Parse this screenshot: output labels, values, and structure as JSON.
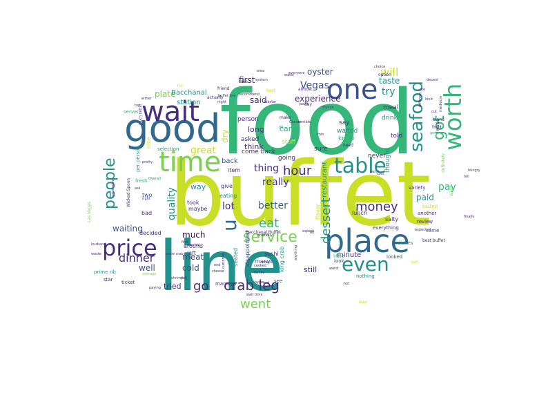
{
  "palette": {
    "background": "#ffffff",
    "yellowgreen": "#c8df26",
    "green": "#35b779",
    "lightgreen": "#7ad151",
    "teal": "#21918c",
    "blue": "#31688e",
    "slate": "#3b528b",
    "purple": "#472d7b",
    "darkpurple": "#440154",
    "yellow": "#e3e418"
  },
  "words": [
    {
      "text": "buffet",
      "color": "yellowgreen"
    },
    {
      "text": "food",
      "color": "green"
    },
    {
      "text": "line",
      "color": "teal"
    },
    {
      "text": "good",
      "color": "blue"
    },
    {
      "text": "wait",
      "color": "purple"
    },
    {
      "text": "one",
      "color": "slate"
    },
    {
      "text": "time",
      "color": "lightgreen"
    },
    {
      "text": "place",
      "color": "blue"
    },
    {
      "text": "table",
      "color": "teal"
    },
    {
      "text": "price",
      "color": "purple"
    },
    {
      "text": "even",
      "color": "teal"
    },
    {
      "text": "worth",
      "color": "green"
    },
    {
      "text": "seafood",
      "color": "teal"
    },
    {
      "text": "got",
      "color": "green"
    },
    {
      "text": "people",
      "color": "teal"
    },
    {
      "text": "service",
      "color": "lightgreen"
    },
    {
      "text": "crab leg",
      "color": "purple"
    },
    {
      "text": "u",
      "color": "blue"
    },
    {
      "text": "money",
      "color": "purple"
    },
    {
      "text": "hour",
      "color": "purple"
    },
    {
      "text": "dessert",
      "color": "teal"
    },
    {
      "text": "went",
      "color": "lightgreen"
    },
    {
      "text": "eat",
      "color": "green"
    },
    {
      "text": "dinner",
      "color": "purple"
    },
    {
      "text": "will",
      "color": "yellowgreen"
    },
    {
      "text": "great",
      "color": "yellowgreen"
    },
    {
      "text": "quality",
      "color": "teal"
    },
    {
      "text": "Vegas",
      "color": "slate"
    },
    {
      "text": "go",
      "color": "purple"
    },
    {
      "text": "really",
      "color": "purple"
    },
    {
      "text": "better",
      "color": "blue"
    },
    {
      "text": "lot",
      "color": "purple"
    },
    {
      "text": "thing",
      "color": "purple"
    },
    {
      "text": "pay",
      "color": "green"
    },
    {
      "text": "try",
      "color": "teal"
    },
    {
      "text": "much",
      "color": "darkpurple"
    },
    {
      "text": "meat",
      "color": "slate"
    },
    {
      "text": "cold",
      "color": "slate"
    },
    {
      "text": "oyster",
      "color": "slate"
    },
    {
      "text": "said",
      "color": "purple"
    },
    {
      "text": "experience",
      "color": "purple"
    },
    {
      "text": "well",
      "color": "slate"
    },
    {
      "text": "waiting",
      "color": "slate"
    },
    {
      "text": "tried",
      "color": "purple"
    },
    {
      "text": "first",
      "color": "purple"
    },
    {
      "text": "plate",
      "color": "lightgreen"
    },
    {
      "text": "taste",
      "color": "teal"
    },
    {
      "text": "paid",
      "color": "teal"
    },
    {
      "text": "long",
      "color": "purple"
    },
    {
      "text": "think",
      "color": "purple"
    },
    {
      "text": "still",
      "color": "purple"
    },
    {
      "text": "came",
      "color": "green"
    },
    {
      "text": "minute",
      "color": "purple"
    },
    {
      "text": "way",
      "color": "teal"
    },
    {
      "text": "back",
      "color": "slate"
    },
    {
      "text": "dry",
      "color": "yellowgreen"
    },
    {
      "text": "restaurant",
      "color": "teal"
    },
    {
      "text": "Bacchanal",
      "color": "teal"
    },
    {
      "text": "station",
      "color": "teal"
    },
    {
      "text": "person",
      "color": "purple"
    },
    {
      "text": "asked",
      "color": "purple"
    },
    {
      "text": "come back",
      "color": "purple"
    },
    {
      "text": "staff",
      "color": "yellowgreen"
    },
    {
      "text": "waited",
      "color": "teal"
    },
    {
      "text": "know",
      "color": "green"
    },
    {
      "text": "say",
      "color": "purple"
    },
    {
      "text": "meal",
      "color": "purple"
    },
    {
      "text": "drink",
      "color": "teal"
    },
    {
      "text": "thought",
      "color": "teal"
    },
    {
      "text": "told",
      "color": "purple"
    },
    {
      "text": "never",
      "color": "purple"
    },
    {
      "text": "sure",
      "color": "purple"
    },
    {
      "text": "going",
      "color": "purple"
    },
    {
      "text": "item",
      "color": "purple"
    },
    {
      "text": "give",
      "color": "purple"
    },
    {
      "text": "eating",
      "color": "teal"
    },
    {
      "text": "took",
      "color": "purple"
    },
    {
      "text": "maybe",
      "color": "purple"
    },
    {
      "text": "two",
      "color": "slate"
    },
    {
      "text": "bad",
      "color": "purple"
    },
    {
      "text": "decided",
      "color": "purple"
    },
    {
      "text": "around",
      "color": "purple"
    },
    {
      "text": "left",
      "color": "slate"
    },
    {
      "text": "seated",
      "color": "teal"
    },
    {
      "text": "disappointed",
      "color": "slate"
    },
    {
      "text": "sushi",
      "color": "purple"
    },
    {
      "text": "lunch",
      "color": "purple"
    },
    {
      "text": "salty",
      "color": "purple"
    },
    {
      "text": "flavor",
      "color": "yellowgreen"
    },
    {
      "text": "king crab",
      "color": "teal"
    },
    {
      "text": "many",
      "color": "slate"
    },
    {
      "text": "manager",
      "color": "purple"
    },
    {
      "text": "see",
      "color": "slate"
    },
    {
      "text": "nothing",
      "color": "teal"
    },
    {
      "text": "looked",
      "color": "slate"
    },
    {
      "text": "little",
      "color": "green"
    },
    {
      "text": "look",
      "color": "slate"
    },
    {
      "text": "everything",
      "color": "purple"
    },
    {
      "text": "another",
      "color": "purple"
    },
    {
      "text": "review",
      "color": "purple"
    },
    {
      "text": "come",
      "color": "slate"
    },
    {
      "text": "dishes",
      "color": "teal"
    },
    {
      "text": "tasted",
      "color": "yellowgreen"
    },
    {
      "text": "variety",
      "color": "purple"
    },
    {
      "text": "selection",
      "color": "teal"
    },
    {
      "text": "nice",
      "color": "yellowgreen"
    },
    {
      "text": "fresh",
      "color": "green"
    },
    {
      "text": "ticket",
      "color": "purple"
    },
    {
      "text": "star",
      "color": "purple"
    },
    {
      "text": "prime rib",
      "color": "teal"
    },
    {
      "text": "server",
      "color": "green"
    },
    {
      "text": "per person",
      "color": "teal"
    },
    {
      "text": "Wicked Spoon",
      "color": "purple"
    },
    {
      "text": "Bacchanal Buffet",
      "color": "purple"
    },
    {
      "text": "best buffet",
      "color": "purple"
    },
    {
      "text": "Overall",
      "color": "teal"
    },
    {
      "text": "ok",
      "color": "teal"
    },
    {
      "text": "take",
      "color": "purple"
    },
    {
      "text": "recommend",
      "color": "purple"
    },
    {
      "text": "almost",
      "color": "purple"
    },
    {
      "text": "best",
      "color": "yellowgreen"
    },
    {
      "text": "friend",
      "color": "purple"
    },
    {
      "text": "option",
      "color": "purple"
    },
    {
      "text": "day",
      "color": "purple"
    },
    {
      "text": "make",
      "color": "purple"
    },
    {
      "text": "check",
      "color": "purple"
    },
    {
      "text": "need",
      "color": "purple"
    },
    {
      "text": "lobster",
      "color": "purple"
    },
    {
      "text": "bland",
      "color": "purple"
    },
    {
      "text": "front",
      "color": "purple"
    },
    {
      "text": "getting",
      "color": "green"
    },
    {
      "text": "made",
      "color": "purple"
    },
    {
      "text": "definitely",
      "color": "lightgreen"
    },
    {
      "text": "want",
      "color": "lightgreen"
    },
    {
      "text": "cut",
      "color": "purple"
    },
    {
      "text": "party",
      "color": "purple"
    },
    {
      "text": "cost",
      "color": "purple"
    },
    {
      "text": "pretty",
      "color": "purple"
    },
    {
      "text": "wanted",
      "color": "purple"
    },
    {
      "text": "find",
      "color": "purple"
    },
    {
      "text": "hype",
      "color": "purple"
    },
    {
      "text": "family",
      "color": "purple"
    },
    {
      "text": "cooked",
      "color": "purple"
    },
    {
      "text": "feel",
      "color": "purple"
    },
    {
      "text": "end",
      "color": "purple"
    },
    {
      "text": "customer",
      "color": "purple"
    },
    {
      "text": "anything",
      "color": "purple"
    },
    {
      "text": "let",
      "color": "purple"
    },
    {
      "text": "worst",
      "color": "purple"
    },
    {
      "text": "snow crab",
      "color": "purple"
    },
    {
      "text": "shrimp",
      "color": "purple"
    },
    {
      "text": "cheese",
      "color": "purple"
    },
    {
      "text": "probably",
      "color": "purple"
    },
    {
      "text": "expected",
      "color": "purple"
    },
    {
      "text": "half",
      "color": "yellowgreen"
    },
    {
      "text": "hot",
      "color": "purple"
    },
    {
      "text": "least",
      "color": "yellowgreen"
    },
    {
      "text": "wait time",
      "color": "purple"
    },
    {
      "text": "felt",
      "color": "purple"
    },
    {
      "text": "average",
      "color": "lightgreen"
    },
    {
      "text": "husband",
      "color": "purple"
    },
    {
      "text": "waste",
      "color": "purple"
    },
    {
      "text": "Las Vegas",
      "color": "lightgreen"
    },
    {
      "text": "right",
      "color": "purple"
    },
    {
      "text": "ask",
      "color": "purple"
    },
    {
      "text": "expect",
      "color": "purple"
    },
    {
      "text": "mediocre",
      "color": "purple"
    },
    {
      "text": "decent",
      "color": "purple"
    },
    {
      "text": "ate",
      "color": "purple"
    },
    {
      "text": "kind",
      "color": "purple"
    },
    {
      "text": "choice",
      "color": "purple"
    },
    {
      "text": "everyone",
      "color": "purple"
    },
    {
      "text": "water",
      "color": "purple"
    },
    {
      "text": "system",
      "color": "purple"
    },
    {
      "text": "brunch",
      "color": "purple"
    },
    {
      "text": "point",
      "color": "purple"
    },
    {
      "text": "Caesar",
      "color": "purple"
    },
    {
      "text": "terrible",
      "color": "purple"
    },
    {
      "text": "min",
      "color": "purple"
    },
    {
      "text": "area",
      "color": "purple"
    },
    {
      "text": "either",
      "color": "purple"
    },
    {
      "text": "full",
      "color": "yellowgreen"
    },
    {
      "text": "night",
      "color": "purple"
    },
    {
      "text": "tell",
      "color": "purple"
    },
    {
      "text": "finally",
      "color": "purple"
    },
    {
      "text": "expensive",
      "color": "purple"
    },
    {
      "text": "much better",
      "color": "purple"
    },
    {
      "text": "actually",
      "color": "purple"
    },
    {
      "text": "different",
      "color": "purple"
    },
    {
      "text": "hungry",
      "color": "purple"
    },
    {
      "text": "buffet line",
      "color": "purple"
    },
    {
      "text": "top",
      "color": "purple"
    },
    {
      "text": "paying",
      "color": "purple"
    }
  ]
}
